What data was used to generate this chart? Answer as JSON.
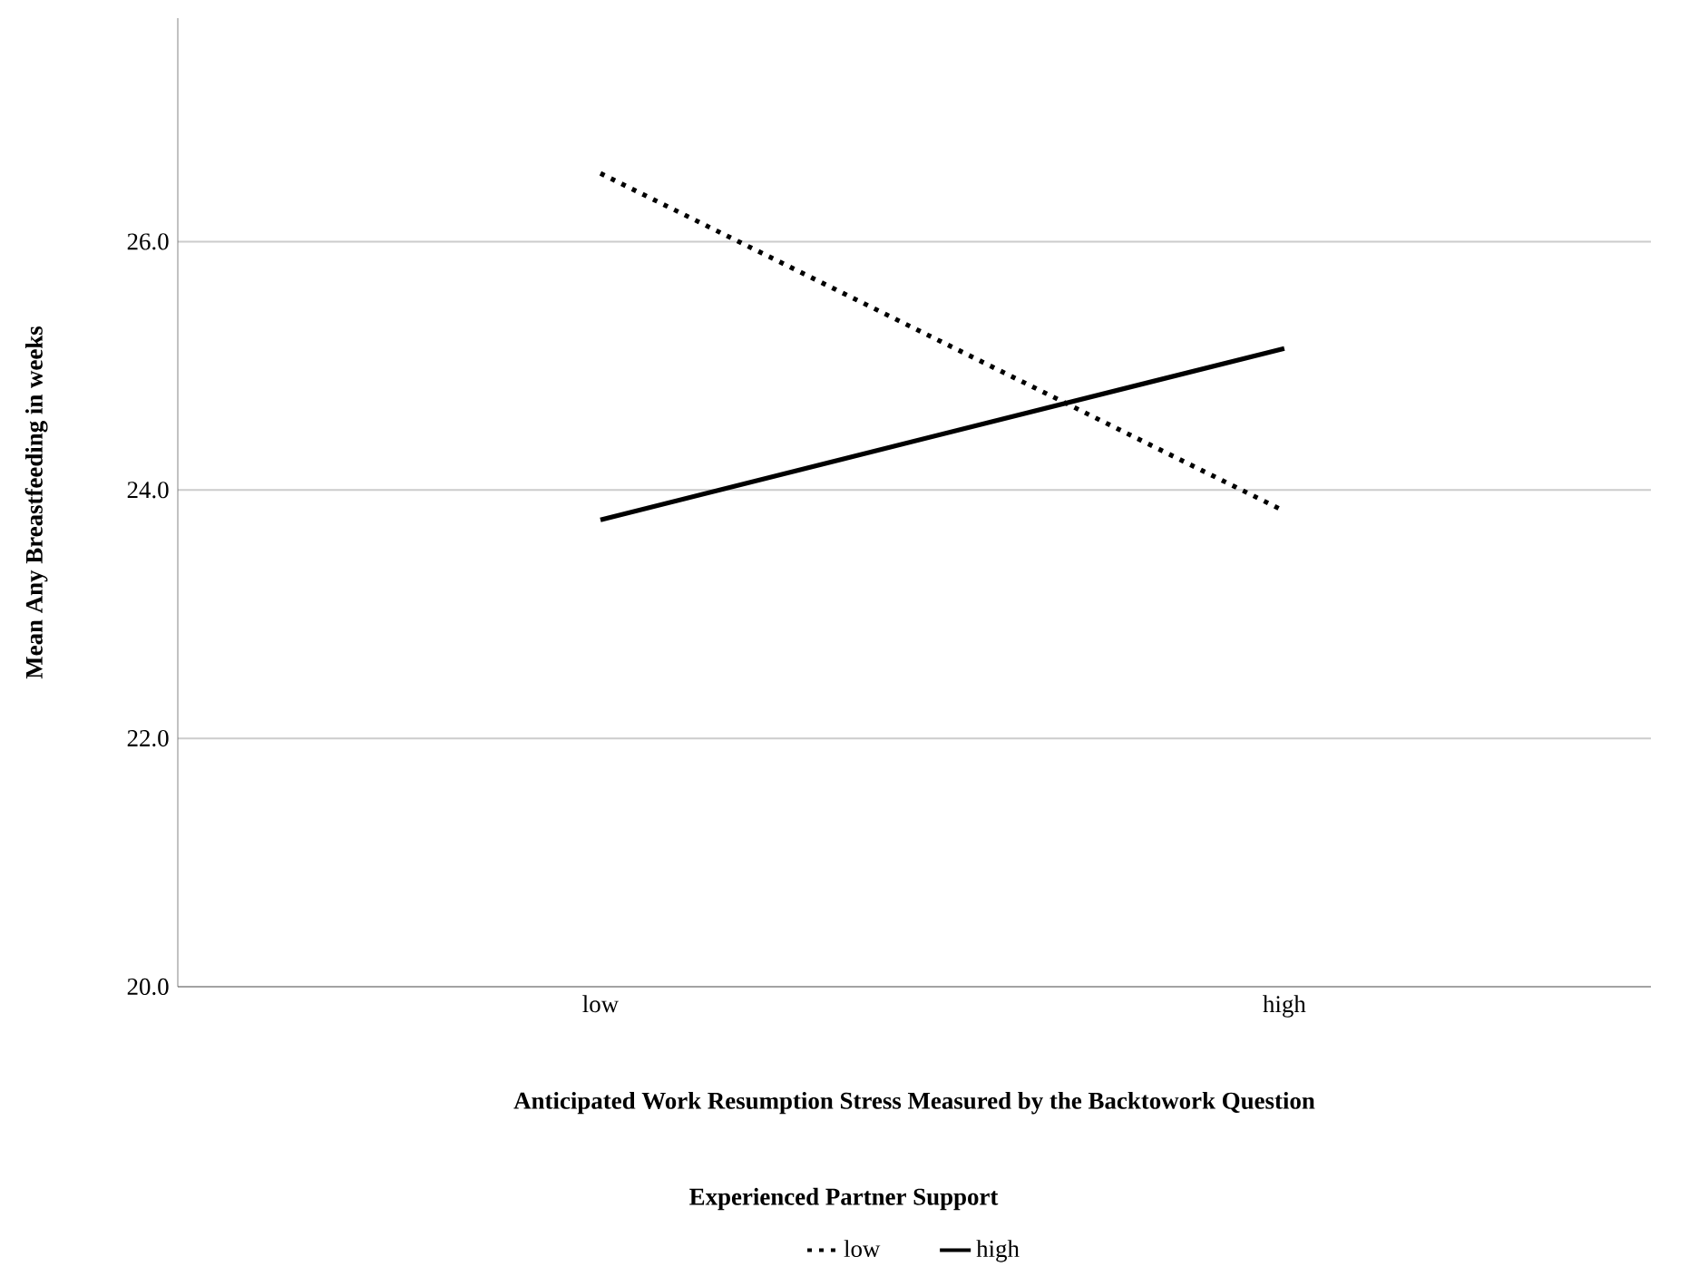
{
  "chart_data": {
    "type": "line",
    "xlabel": "Anticipated Work Resumption Stress Measured by the Backtowork Question",
    "ylabel": "Mean Any Breastfeeding in weeks",
    "legend_title": "Experienced Partner Support",
    "categories": [
      "low",
      "high"
    ],
    "series": [
      {
        "name": "low",
        "color": "#000000",
        "line_style": "dotted",
        "values": [
          26.55,
          23.83
        ]
      },
      {
        "name": "high",
        "color": "#000000",
        "line_style": "solid",
        "values": [
          23.76,
          25.14
        ]
      }
    ],
    "ylim": [
      20,
      27.8
    ],
    "yticks": [
      {
        "value": 20,
        "label": "20.0"
      },
      {
        "value": 22,
        "label": "22.0"
      },
      {
        "value": 24,
        "label": "24.0"
      },
      {
        "value": 26,
        "label": "26.0"
      }
    ],
    "grid": "y",
    "legend": "bottom"
  }
}
